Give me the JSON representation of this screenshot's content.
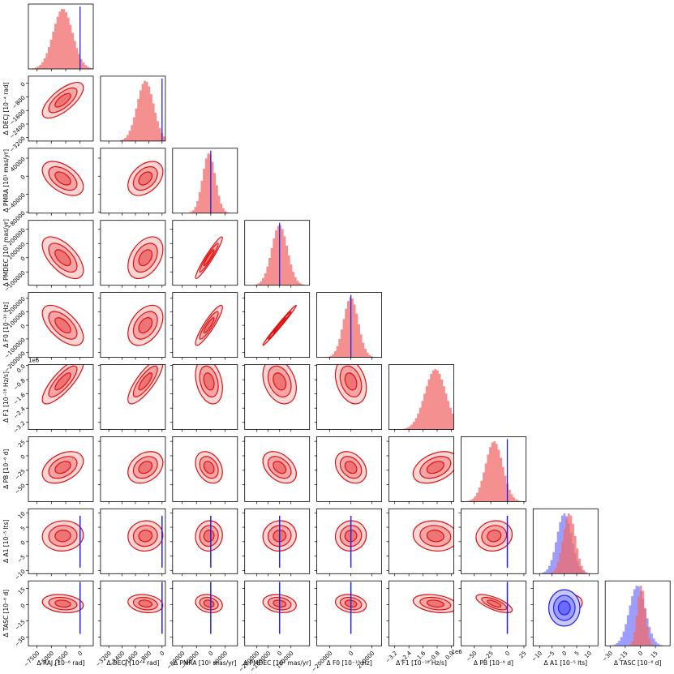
{
  "chart_data": {
    "type": "corner",
    "params": [
      {
        "label": "Δ RAJ [10⁻⁶ rad]",
        "xlim": [
          -9000,
          2300
        ],
        "xticks": [
          {
            "value": -7500,
            "label": "−7500"
          },
          {
            "value": -5000,
            "label": "−5000"
          },
          {
            "value": -2500,
            "label": "−2500"
          },
          0
        ],
        "mean": -3000,
        "sd": 1700,
        "blue_mean": 0
      },
      {
        "label": "Δ DECJ [10⁻⁴ rad]",
        "xlim": [
          -3700,
          200
        ],
        "ylim": [
          -3400,
          420
        ],
        "xticks": [
          {
            "value": -3200,
            "label": "−3200"
          },
          {
            "value": -2400,
            "label": "−2400"
          },
          {
            "value": -1600,
            "label": "−1600"
          },
          {
            "value": -800,
            "label": "−800"
          },
          0
        ],
        "yticks": [
          0,
          {
            "value": -800,
            "label": "−800"
          },
          {
            "value": -1600,
            "label": "−1600"
          },
          {
            "value": -2400,
            "label": "−2400"
          },
          {
            "value": -3200,
            "label": "−3200"
          }
        ],
        "mean": -1000,
        "sd": 500,
        "blue_mean": 0
      },
      {
        "label": "Δ PMRA [10¹ mas/yr]",
        "xlim": [
          -107000,
          75000
        ],
        "ylim": [
          -82000,
          62000
        ],
        "xticks": [
          {
            "value": -80000,
            "label": "−80000"
          },
          {
            "value": -40000,
            "label": "−40000"
          },
          0,
          40000
        ],
        "yticks": [
          40000,
          0,
          {
            "value": -40000,
            "label": "−40000"
          },
          {
            "value": -80000,
            "label": "−80000"
          }
        ],
        "mean": -5000,
        "sd": 18000,
        "blue_mean": 0
      },
      {
        "label": "Δ PMDEC [10¹ mas/yr]",
        "xlim": [
          -307000,
          264000
        ],
        "ylim": [
          -194000,
          263000
        ],
        "xticks": [
          {
            "value": -200000,
            "label": "−200000"
          },
          {
            "value": -100000,
            "label": "−100000"
          },
          0,
          100000
        ],
        "yticks": [
          200000,
          100000,
          0,
          {
            "value": -100000,
            "label": "−100000"
          }
        ],
        "mean": 0,
        "sd": 70000,
        "blue_mean": 0
      },
      {
        "label": "Δ F0 [10⁻¹⁰ Hz]",
        "xlim": [
          -323000,
          292000
        ],
        "ylim": [
          -235000,
          241000
        ],
        "xticks": [
          {
            "value": -200000,
            "label": "−200000"
          },
          0,
          200000
        ],
        "yticks": [
          200000,
          100000,
          0,
          {
            "value": -100000,
            "label": "−100000"
          },
          {
            "value": -200000,
            "label": "−200000"
          }
        ],
        "mean": 0,
        "sd": 70000,
        "blue_mean": 0
      },
      {
        "label": "Δ F1 [10⁻¹⁸ Hz/s]",
        "offset_text": "1e6",
        "xlim": [
          -3.53,
          0.14
        ],
        "ylim": [
          -3.6,
          0.05
        ],
        "xticks": [
          {
            "value": -3.2,
            "label": "−3.2"
          },
          {
            "value": -2.4,
            "label": "−2.4"
          },
          {
            "value": -1.6,
            "label": "−1.6"
          },
          {
            "value": -0.8,
            "label": "−0.8"
          },
          {
            "value": 0,
            "label": "0.0"
          }
        ],
        "yticks": [
          {
            "value": 0,
            "label": "0.0"
          },
          {
            "value": -0.8,
            "label": "−0.8"
          },
          {
            "value": -1.6,
            "label": "−1.6"
          },
          {
            "value": -2.4,
            "label": "−2.4"
          },
          {
            "value": -3.2,
            "label": "−3.2"
          }
        ],
        "mean": -0.9,
        "sd": 0.6
      },
      {
        "label": "Δ PB [10⁻⁶ d]",
        "xlim": [
          -70,
          28
        ],
        "ylim": [
          -79,
          33
        ],
        "xticks": [
          {
            "value": -50,
            "label": "−50"
          },
          {
            "value": -25,
            "label": "−25"
          },
          0,
          25
        ],
        "yticks": [
          25,
          0,
          {
            "value": -25,
            "label": "−25"
          },
          {
            "value": -50,
            "label": "−50"
          }
        ],
        "mean": -20,
        "sd": 13,
        "blue_mean": 0
      },
      {
        "label": "Δ A1 [10⁻⁵ lts]",
        "xlim": [
          -12.6,
          13.6
        ],
        "ylim": [
          -11.1,
          11.4
        ],
        "xticks": [
          {
            "value": -10,
            "label": "−10"
          },
          {
            "value": -5,
            "label": "−5"
          },
          0,
          5,
          10
        ],
        "yticks": [
          10,
          5,
          0,
          {
            "value": -5,
            "label": "−5"
          },
          {
            "value": -10,
            "label": "−10"
          }
        ],
        "mean": 2,
        "sd": 2.5,
        "blue_mean": 0,
        "blue_sd": 3
      },
      {
        "label": "Δ TASC [10⁻⁶ d]",
        "xlim": [
          -34.9,
          29.6
        ],
        "ylim": [
          -38,
          22
        ],
        "xticks": [
          {
            "value": -30,
            "label": "−30"
          },
          {
            "value": -15,
            "label": "−15"
          },
          0,
          15
        ],
        "yticks": [
          15,
          0,
          {
            "value": -15,
            "label": "−15"
          },
          {
            "value": -30,
            "label": "−30"
          }
        ],
        "mean": 1,
        "sd": 4,
        "blue_mean": -3,
        "blue_sd": 8
      }
    ],
    "correlations": [
      [
        0.7
      ],
      [
        -0.5,
        0.4
      ],
      [
        -0.6,
        0.4,
        0.95
      ],
      [
        -0.6,
        0.4,
        0.9,
        0.99
      ],
      [
        0.8,
        0.8,
        -0.3,
        -0.3,
        -0.3
      ],
      [
        0.4,
        0.3,
        -0.3,
        -0.4,
        -0.3,
        0.4
      ],
      [
        0.05,
        0.05,
        0.05,
        0.05,
        0.05,
        -0.1,
        0.1
      ],
      [
        -0.2,
        -0.2,
        -0.2,
        -0.2,
        -0.2,
        -0.3,
        -0.7,
        0.1
      ]
    ]
  }
}
